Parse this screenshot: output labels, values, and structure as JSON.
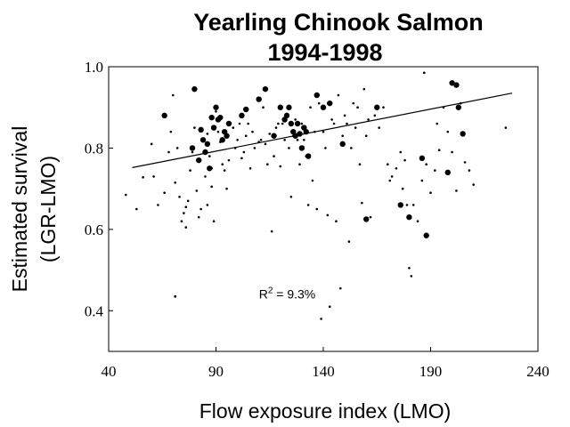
{
  "chart_data": {
    "type": "scatter",
    "title_line1": "Yearling Chinook Salmon",
    "title_line2": "1994-1998",
    "xlabel": "Flow exposure index (LMO)",
    "ylabel_line1": "Estimated survival",
    "ylabel_line2": "(LGR-LMO)",
    "xlim": [
      40,
      240
    ],
    "ylim": [
      0.3,
      1.0
    ],
    "x_ticks": [
      "40",
      "90",
      "140",
      "190",
      "240"
    ],
    "x_tick_values": [
      40,
      90,
      140,
      190,
      240
    ],
    "y_ticks": [
      "1.0",
      "0.8",
      "0.6",
      "0.4"
    ],
    "y_tick_values": [
      1.0,
      0.8,
      0.6,
      0.4
    ],
    "annotation": {
      "text_prefix": "R",
      "superscript": "2",
      "text_suffix": " = 9.3%",
      "x": 110,
      "y": 0.43,
      "dot_x": 71,
      "dot_y": 0.435
    },
    "trend_line": {
      "x": [
        51,
        228
      ],
      "y": [
        0.752,
        0.935
      ]
    },
    "small_points": [
      [
        48,
        0.685
      ],
      [
        53,
        0.65
      ],
      [
        56,
        0.728
      ],
      [
        60,
        0.81
      ],
      [
        61,
        0.73
      ],
      [
        63,
        0.66
      ],
      [
        66,
        0.69
      ],
      [
        68,
        0.79
      ],
      [
        69,
        0.84
      ],
      [
        70,
        0.93
      ],
      [
        71,
        0.715
      ],
      [
        72,
        0.8
      ],
      [
        73,
        0.68
      ],
      [
        74,
        0.62
      ],
      [
        75,
        0.64
      ],
      [
        76,
        0.655
      ],
      [
        76,
        0.605
      ],
      [
        77,
        0.67
      ],
      [
        78,
        0.745
      ],
      [
        79,
        0.79
      ],
      [
        80,
        0.85
      ],
      [
        81,
        0.695
      ],
      [
        82,
        0.63
      ],
      [
        83,
        0.65
      ],
      [
        84,
        0.82
      ],
      [
        85,
        0.73
      ],
      [
        86,
        0.835
      ],
      [
        86,
        0.66
      ],
      [
        87,
        0.78
      ],
      [
        88,
        0.75
      ],
      [
        88,
        0.705
      ],
      [
        89,
        0.62
      ],
      [
        90,
        0.89
      ],
      [
        91,
        0.84
      ],
      [
        92,
        0.815
      ],
      [
        93,
        0.76
      ],
      [
        94,
        0.745
      ],
      [
        95,
        0.7
      ],
      [
        96,
        0.77
      ],
      [
        98,
        0.85
      ],
      [
        99,
        0.8
      ],
      [
        100,
        0.82
      ],
      [
        101,
        0.86
      ],
      [
        102,
        0.775
      ],
      [
        103,
        0.79
      ],
      [
        104,
        0.83
      ],
      [
        105,
        0.86
      ],
      [
        106,
        0.75
      ],
      [
        107,
        0.84
      ],
      [
        108,
        0.8
      ],
      [
        110,
        0.815
      ],
      [
        111,
        0.82
      ],
      [
        112,
        0.9
      ],
      [
        113,
        0.81
      ],
      [
        114,
        0.76
      ],
      [
        115,
        0.835
      ],
      [
        116,
        0.595
      ],
      [
        117,
        0.78
      ],
      [
        118,
        0.85
      ],
      [
        119,
        0.86
      ],
      [
        120,
        0.755
      ],
      [
        121,
        0.86
      ],
      [
        122,
        0.82
      ],
      [
        124,
        0.8
      ],
      [
        125,
        0.68
      ],
      [
        126,
        0.83
      ],
      [
        127,
        0.87
      ],
      [
        128,
        0.82
      ],
      [
        129,
        0.76
      ],
      [
        130,
        0.86
      ],
      [
        131,
        0.82
      ],
      [
        132,
        0.78
      ],
      [
        133,
        0.66
      ],
      [
        134,
        0.9
      ],
      [
        135,
        0.72
      ],
      [
        136,
        0.84
      ],
      [
        137,
        0.65
      ],
      [
        138,
        0.91
      ],
      [
        139,
        0.38
      ],
      [
        140,
        0.84
      ],
      [
        141,
        0.8
      ],
      [
        142,
        0.635
      ],
      [
        143,
        0.41
      ],
      [
        144,
        0.87
      ],
      [
        145,
        0.86
      ],
      [
        146,
        0.62
      ],
      [
        147,
        0.93
      ],
      [
        148,
        0.455
      ],
      [
        149,
        0.83
      ],
      [
        150,
        0.88
      ],
      [
        151,
        0.86
      ],
      [
        152,
        0.57
      ],
      [
        153,
        0.8
      ],
      [
        154,
        0.91
      ],
      [
        155,
        0.85
      ],
      [
        156,
        0.9
      ],
      [
        157,
        0.76
      ],
      [
        158,
        0.665
      ],
      [
        159,
        0.945
      ],
      [
        160,
        0.83
      ],
      [
        161,
        0.87
      ],
      [
        162,
        0.63
      ],
      [
        164,
        0.88
      ],
      [
        166,
        0.85
      ],
      [
        168,
        0.9
      ],
      [
        170,
        0.76
      ],
      [
        171,
        0.72
      ],
      [
        172,
        0.73
      ],
      [
        174,
        0.75
      ],
      [
        176,
        0.79
      ],
      [
        177,
        0.7
      ],
      [
        178,
        0.77
      ],
      [
        179,
        0.66
      ],
      [
        180,
        0.505
      ],
      [
        181,
        0.485
      ],
      [
        182,
        0.66
      ],
      [
        184,
        0.62
      ],
      [
        186,
        0.72
      ],
      [
        187,
        0.985
      ],
      [
        188,
        0.76
      ],
      [
        190,
        0.69
      ],
      [
        192,
        0.745
      ],
      [
        193,
        0.86
      ],
      [
        194,
        0.795
      ],
      [
        196,
        0.9
      ],
      [
        198,
        0.84
      ],
      [
        200,
        0.79
      ],
      [
        202,
        0.695
      ],
      [
        204,
        0.91
      ],
      [
        206,
        0.765
      ],
      [
        208,
        0.745
      ],
      [
        210,
        0.71
      ],
      [
        225,
        0.85
      ]
    ],
    "large_points": [
      [
        66,
        0.88
      ],
      [
        79,
        0.8
      ],
      [
        80,
        0.945
      ],
      [
        82,
        0.77
      ],
      [
        83,
        0.845
      ],
      [
        84,
        0.82
      ],
      [
        85,
        0.79
      ],
      [
        86,
        0.81
      ],
      [
        87,
        0.75
      ],
      [
        88,
        0.875
      ],
      [
        89,
        0.85
      ],
      [
        90,
        0.9
      ],
      [
        91,
        0.87
      ],
      [
        92,
        0.875
      ],
      [
        93,
        0.82
      ],
      [
        94,
        0.84
      ],
      [
        95,
        0.83
      ],
      [
        96,
        0.86
      ],
      [
        102,
        0.88
      ],
      [
        104,
        0.895
      ],
      [
        110,
        0.92
      ],
      [
        113,
        0.945
      ],
      [
        117,
        0.83
      ],
      [
        120,
        0.9
      ],
      [
        122,
        0.87
      ],
      [
        123,
        0.88
      ],
      [
        124,
        0.9
      ],
      [
        125,
        0.86
      ],
      [
        126,
        0.84
      ],
      [
        127,
        0.83
      ],
      [
        128,
        0.86
      ],
      [
        129,
        0.835
      ],
      [
        130,
        0.8
      ],
      [
        131,
        0.85
      ],
      [
        132,
        0.84
      ],
      [
        133,
        0.78
      ],
      [
        137,
        0.93
      ],
      [
        140,
        0.9
      ],
      [
        143,
        0.91
      ],
      [
        149,
        0.81
      ],
      [
        165,
        0.9
      ],
      [
        160,
        0.625
      ],
      [
        176,
        0.66
      ],
      [
        180,
        0.63
      ],
      [
        186,
        0.775
      ],
      [
        188,
        0.585
      ],
      [
        198,
        0.74
      ],
      [
        200,
        0.96
      ],
      [
        202,
        0.955
      ],
      [
        203,
        0.9
      ],
      [
        205,
        0.835
      ]
    ]
  }
}
